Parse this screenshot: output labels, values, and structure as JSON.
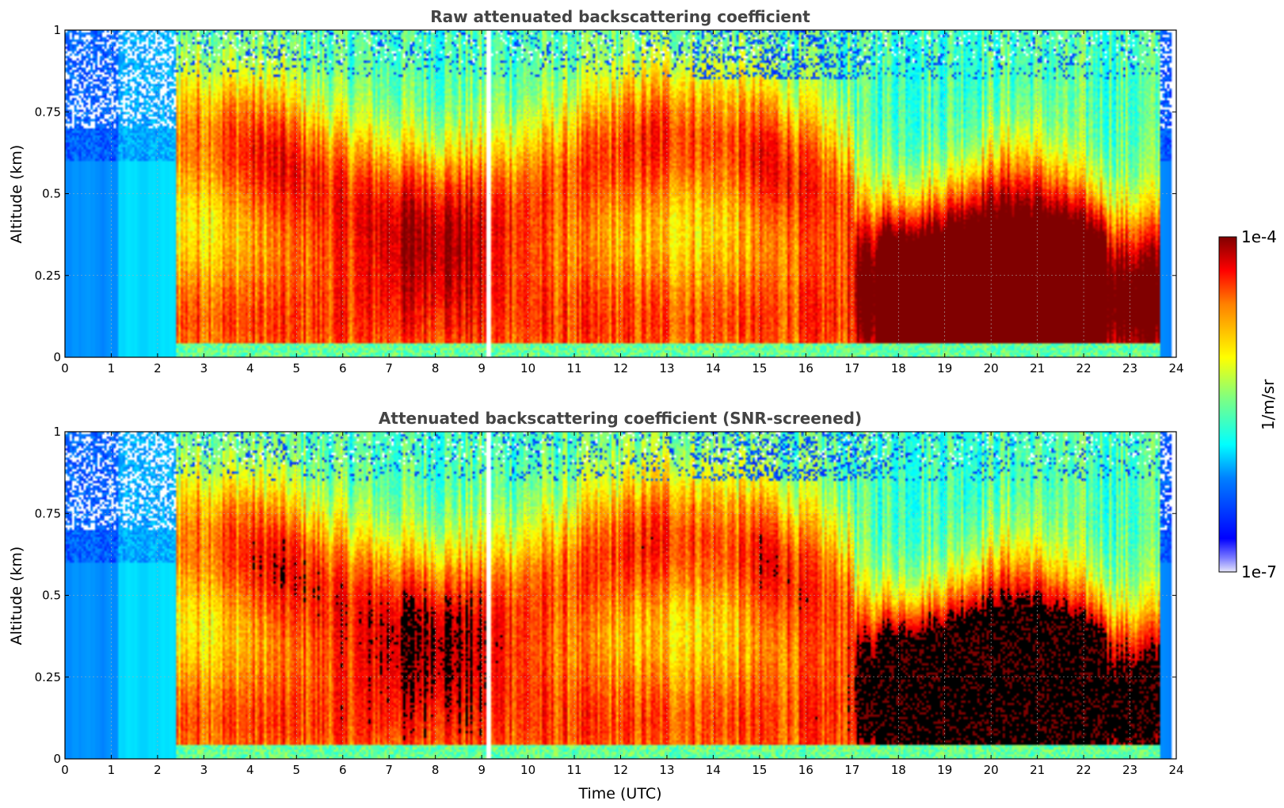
{
  "chart_data": [
    {
      "type": "heatmap",
      "title": "Raw attenuated backscattering coefficient",
      "xlabel": "",
      "ylabel": "Altitude (km)",
      "xlim": [
        0,
        24
      ],
      "ylim": [
        0,
        1
      ],
      "x_ticks": [
        "0",
        "1",
        "2",
        "3",
        "4",
        "5",
        "6",
        "7",
        "8",
        "9",
        "10",
        "11",
        "12",
        "13",
        "14",
        "15",
        "16",
        "17",
        "18",
        "19",
        "20",
        "21",
        "22",
        "23",
        "24"
      ],
      "y_ticks": [
        "0",
        "0.25",
        "0.5",
        "0.75",
        "1"
      ],
      "grid": true,
      "colormap": "jet",
      "color_scale": "log",
      "snr_screened": false
    },
    {
      "type": "heatmap",
      "title": "Attenuated backscattering coefficient (SNR-screened)",
      "xlabel": "Time (UTC)",
      "ylabel": "Altitude (km)",
      "xlim": [
        0,
        24
      ],
      "ylim": [
        0,
        1
      ],
      "x_ticks": [
        "0",
        "1",
        "2",
        "3",
        "4",
        "5",
        "6",
        "7",
        "8",
        "9",
        "10",
        "11",
        "12",
        "13",
        "14",
        "15",
        "16",
        "17",
        "18",
        "19",
        "20",
        "21",
        "22",
        "23",
        "24"
      ],
      "y_ticks": [
        "0",
        "0.25",
        "0.5",
        "0.75",
        "1"
      ],
      "grid": true,
      "colormap": "jet",
      "color_scale": "log",
      "snr_screened": true
    }
  ],
  "colorbar": {
    "label": "1/m/sr",
    "min_label": "1e-7",
    "max_label": "1e-4",
    "scale": "log"
  },
  "colors": {
    "title": "#444444",
    "screened_mask": "#000000",
    "no_data": "#ffffff"
  }
}
